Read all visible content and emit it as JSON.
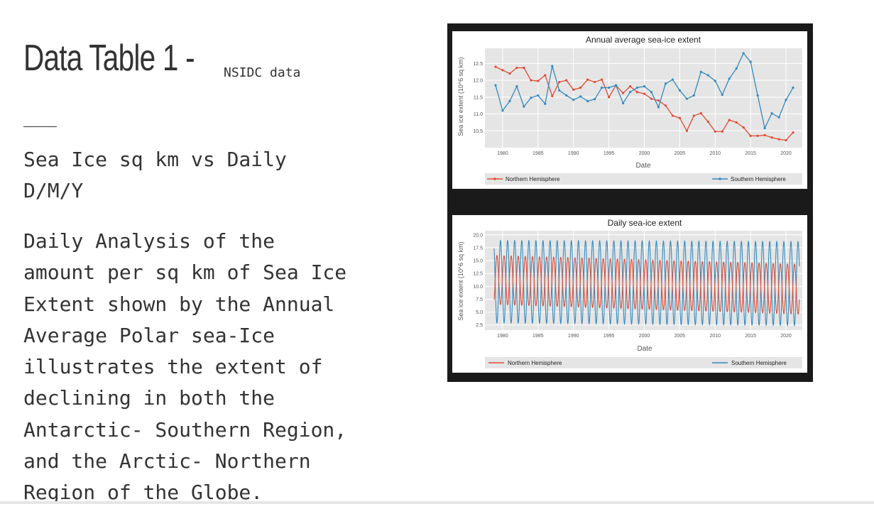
{
  "slide": {
    "title": "Data Table 1 -",
    "title_note": "NSIDC data",
    "separator": "___",
    "subtitle_lines": [
      "Sea Ice sq km vs Daily",
      "D/M/Y"
    ],
    "body_lines": [
      "Daily Analysis of the",
      "amount per sq km of Sea Ice",
      "Extent shown by the Annual",
      "Average Polar sea-Ice",
      "illustrates the extent of",
      "declining in both the",
      "Antarctic- Southern Region,",
      "and the Arctic- Northern",
      "Region of the Globe."
    ]
  },
  "colors": {
    "north": "#e24a33",
    "south": "#348abd",
    "plot_bg": "#e5e5e5",
    "frame": "#1a1a1a"
  },
  "chart_data": [
    {
      "type": "line",
      "title": "Annual average sea-ice extent",
      "xlabel": "Date",
      "ylabel": "Sea ice extent (10^6 sq km)",
      "xlim": [
        1977.5,
        2022.3
      ],
      "ylim": [
        10.0,
        12.95
      ],
      "xticks": [
        "1980",
        "1985",
        "1990",
        "1995",
        "2000",
        "2005",
        "2010",
        "2015",
        "2020"
      ],
      "yticks": [
        "10.5",
        "11.0",
        "11.5",
        "12.0",
        "12.5"
      ],
      "grid": true,
      "legend": "bottom",
      "x": [
        1979,
        1980,
        1981,
        1982,
        1983,
        1984,
        1985,
        1986,
        1987,
        1988,
        1989,
        1990,
        1991,
        1992,
        1993,
        1994,
        1995,
        1996,
        1997,
        1998,
        1999,
        2000,
        2001,
        2002,
        2003,
        2004,
        2005,
        2006,
        2007,
        2008,
        2009,
        2010,
        2011,
        2012,
        2013,
        2014,
        2015,
        2016,
        2017,
        2018,
        2019,
        2020,
        2021
      ],
      "series": [
        {
          "name": "Northern Hemisphere",
          "values": [
            12.4,
            12.3,
            12.2,
            12.37,
            12.37,
            12.0,
            11.98,
            12.15,
            11.53,
            11.95,
            12.0,
            11.72,
            11.78,
            12.02,
            11.95,
            12.02,
            11.5,
            11.85,
            11.62,
            11.82,
            11.65,
            11.6,
            11.45,
            11.4,
            11.25,
            10.95,
            10.88,
            10.5,
            10.95,
            11.02,
            10.77,
            10.48,
            10.48,
            10.82,
            10.75,
            10.6,
            10.35,
            10.35,
            10.37,
            10.3,
            10.25,
            10.22,
            10.45
          ]
        },
        {
          "name": "Southern Hemisphere",
          "values": [
            11.85,
            11.1,
            11.38,
            11.82,
            11.22,
            11.48,
            11.55,
            11.3,
            12.42,
            11.7,
            11.55,
            11.42,
            11.52,
            11.38,
            11.44,
            11.78,
            11.78,
            11.85,
            11.32,
            11.65,
            11.78,
            11.82,
            11.65,
            11.2,
            11.9,
            12.02,
            11.7,
            11.45,
            11.55,
            12.25,
            12.15,
            11.98,
            11.57,
            12.05,
            12.35,
            12.8,
            12.55,
            11.55,
            10.58,
            11.02,
            10.9,
            11.42,
            11.78
          ]
        }
      ]
    },
    {
      "type": "line",
      "title": "Daily sea-ice extent",
      "xlabel": "Date",
      "ylabel": "Sea ice extent (10^6 sq km)",
      "xlim": [
        1977.5,
        2022.3
      ],
      "ylim": [
        1.5,
        20.8
      ],
      "xticks": [
        "1980",
        "1985",
        "1990",
        "1995",
        "2000",
        "2005",
        "2010",
        "2015",
        "2020"
      ],
      "yticks": [
        "2.5",
        "5.0",
        "7.5",
        "10.0",
        "12.5",
        "15.0",
        "17.5",
        "20.0"
      ],
      "grid": true,
      "legend": "bottom",
      "start_year": 1978.8,
      "end_year": 2021.9,
      "series": [
        {
          "name": "Northern Hemisphere",
          "min": 6.5,
          "max": 16.0,
          "min_trend_end": 4.6,
          "max_trend_end": 14.3,
          "max_phase": 0.2
        },
        {
          "name": "Southern Hemisphere",
          "min": 2.9,
          "max": 18.9,
          "min_trend_end": 2.4,
          "max_trend_end": 18.7,
          "max_phase": 0.7
        }
      ]
    }
  ]
}
